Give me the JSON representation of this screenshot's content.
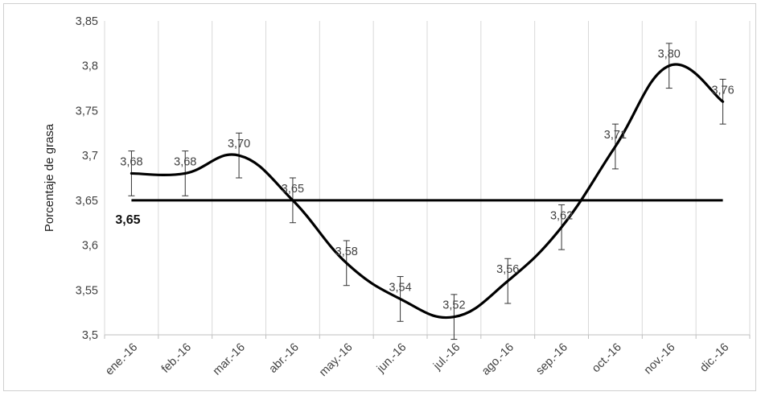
{
  "chart_data": {
    "type": "line",
    "categories": [
      "ene.-16",
      "feb.-16",
      "mar.-16",
      "abr.-16",
      "may.-16",
      "jun.-16",
      "jul.-16",
      "ago.-16",
      "sep.-16",
      "oct.-16",
      "nov.-16",
      "dic.-16"
    ],
    "series": [
      {
        "values": [
          3.68,
          3.68,
          3.7,
          3.65,
          3.58,
          3.54,
          3.52,
          3.56,
          3.62,
          3.71,
          3.8,
          3.76
        ],
        "labels": [
          "3,68",
          "3,68",
          "3,70",
          "3,65",
          "3,58",
          "3,54",
          "3,52",
          "3,56",
          "3,62",
          "3,71",
          "3,80",
          "3,76"
        ],
        "error": 0.025,
        "color": "#000000"
      }
    ],
    "reference_line": {
      "value": 3.65,
      "label": "3,65"
    },
    "ylabel": "Porcentaje de grasa",
    "xlabel": "",
    "ylim": [
      3.5,
      3.85
    ],
    "y_ticks": [
      3.5,
      3.55,
      3.6,
      3.65,
      3.7,
      3.75,
      3.8,
      3.85
    ],
    "y_tick_labels": [
      "3,5",
      "3,55",
      "3,6",
      "3,65",
      "3,7",
      "3,75",
      "3,8",
      "3,85"
    ],
    "grid": "vertical",
    "legend": "none"
  }
}
